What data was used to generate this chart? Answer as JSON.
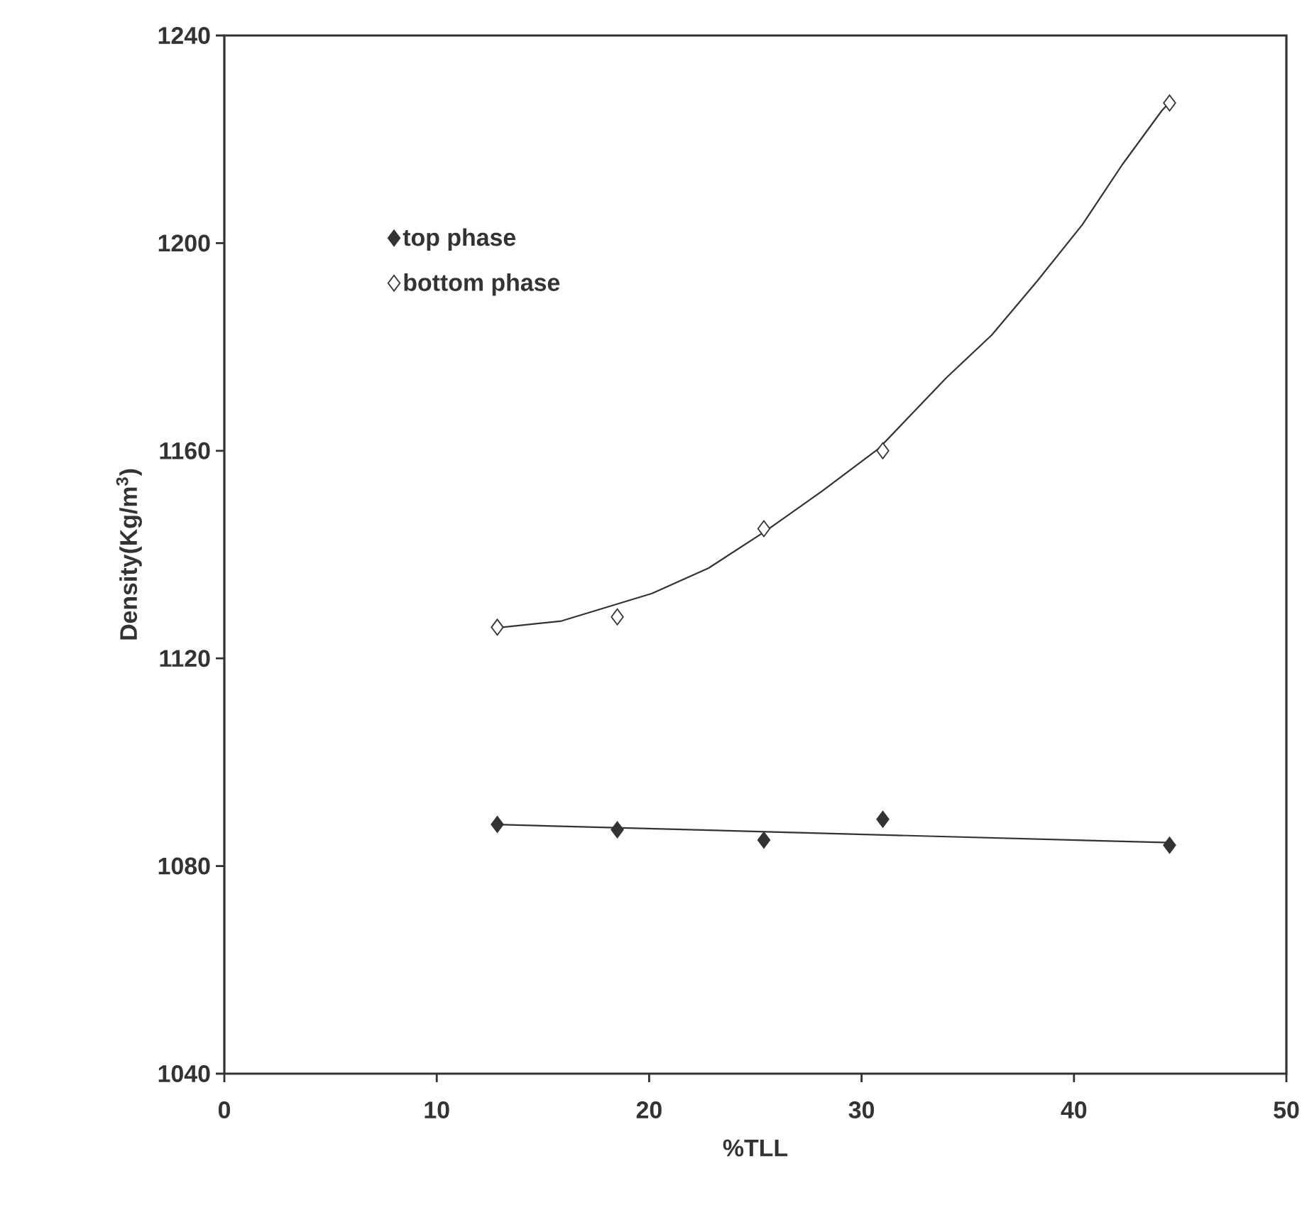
{
  "chart_data": {
    "type": "scatter",
    "xlabel": "%TLL",
    "ylabel": "Density(Kg/m$^{3}$)",
    "xlim": [
      0,
      50
    ],
    "ylim": [
      1040,
      1240
    ],
    "xticks": [
      0,
      10,
      20,
      30,
      40,
      50
    ],
    "yticks": [
      1040,
      1080,
      1120,
      1160,
      1200,
      1240
    ],
    "grid": false,
    "legend": "top left",
    "series": [
      {
        "name": "top phase",
        "marker": "diamond",
        "color": "#333333",
        "x": [
          12.85,
          18.5,
          25.4,
          31.0,
          44.5
        ],
        "values": [
          1088,
          1087,
          1085,
          1089,
          1084
        ]
      },
      {
        "name": "bottom phase",
        "marker": "diamond",
        "color": "#ffffff",
        "x": [
          12.85,
          18.5,
          25.4,
          31.0,
          44.5
        ],
        "values": [
          1126,
          1128,
          1145,
          1160,
          1227
        ]
      },
      {
        "type": "line",
        "marker": "none",
        "color": "#333333",
        "x": [
          12.85,
          44.5
        ],
        "values": [
          1088,
          1084.5
        ]
      },
      {
        "type": "line",
        "marker": "none",
        "color": "#333333",
        "x": [
          12.85,
          15.87,
          20.13,
          22.8,
          25.47,
          28.13,
          30.8,
          34.0,
          36.13,
          38.27,
          40.4,
          42.27,
          44.13,
          44.47
        ],
        "values": [
          1125.9,
          1127.2,
          1132.5,
          1137.4,
          1144.5,
          1152.2,
          1160.4,
          1174.1,
          1182.3,
          1192.7,
          1203.6,
          1215.1,
          1225.5,
          1227
        ]
      }
    ]
  }
}
